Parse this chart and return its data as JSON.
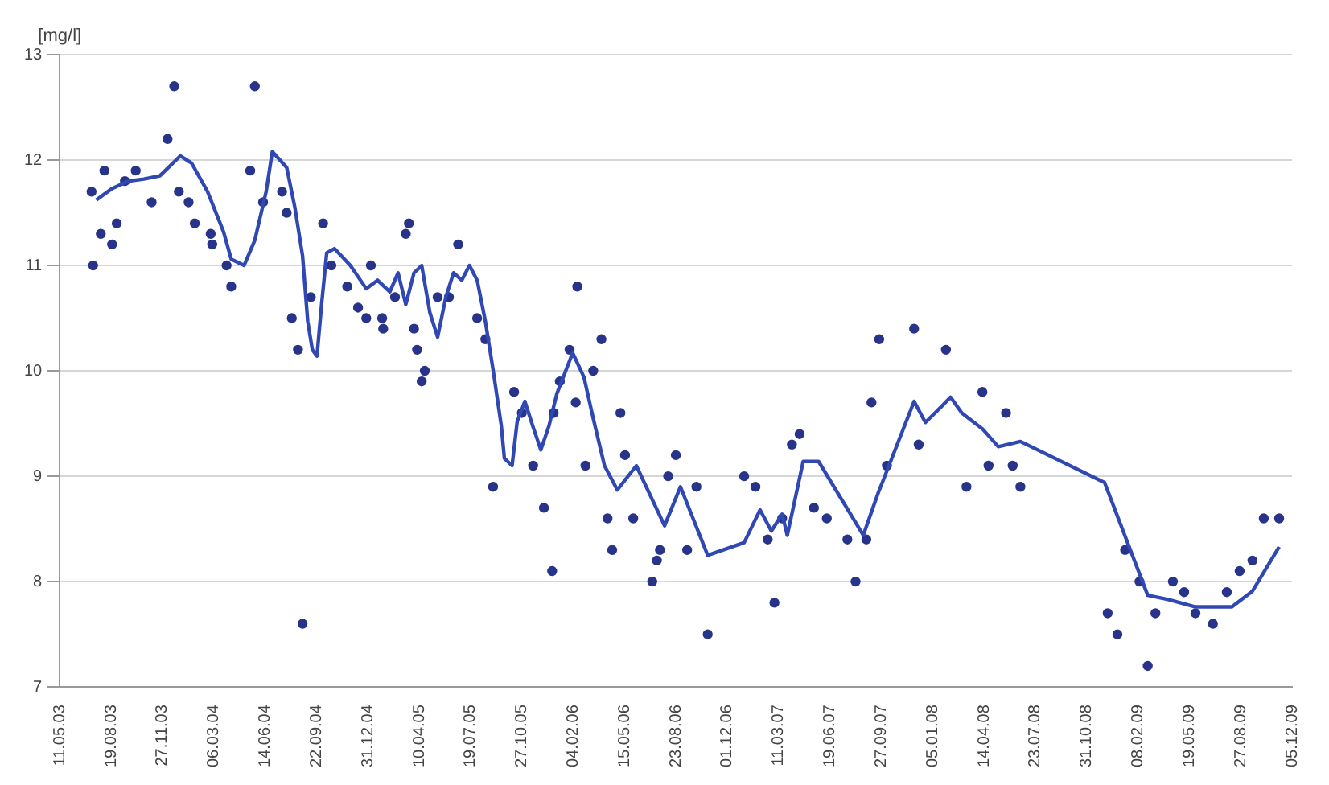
{
  "chart_data": {
    "type": "scatter",
    "ylabel": "[mg/l]",
    "ylim": [
      7,
      13
    ],
    "yticks": [
      7,
      8,
      9,
      10,
      11,
      12,
      13
    ],
    "grid": "y",
    "legend": false,
    "xlim": [
      "2003-05-11",
      "2009-12-05"
    ],
    "xticks": [
      {
        "value": "2003-05-11",
        "label": "11.05.03"
      },
      {
        "value": "2003-08-19",
        "label": "19.08.03"
      },
      {
        "value": "2003-11-27",
        "label": "27.11.03"
      },
      {
        "value": "2004-03-06",
        "label": "06.03.04"
      },
      {
        "value": "2004-06-14",
        "label": "14.06.04"
      },
      {
        "value": "2004-09-22",
        "label": "22.09.04"
      },
      {
        "value": "2004-12-31",
        "label": "31.12.04"
      },
      {
        "value": "2005-04-10",
        "label": "10.04.05"
      },
      {
        "value": "2005-07-19",
        "label": "19.07.05"
      },
      {
        "value": "2005-10-27",
        "label": "27.10.05"
      },
      {
        "value": "2006-02-04",
        "label": "04.02.06"
      },
      {
        "value": "2006-05-15",
        "label": "15.05.06"
      },
      {
        "value": "2006-08-23",
        "label": "23.08.06"
      },
      {
        "value": "2006-12-01",
        "label": "01.12.06"
      },
      {
        "value": "2007-03-11",
        "label": "11.03.07"
      },
      {
        "value": "2007-06-19",
        "label": "19.06.07"
      },
      {
        "value": "2007-09-27",
        "label": "27.09.07"
      },
      {
        "value": "2008-01-05",
        "label": "05.01.08"
      },
      {
        "value": "2008-04-14",
        "label": "14.04.08"
      },
      {
        "value": "2008-07-23",
        "label": "23.07.08"
      },
      {
        "value": "2008-10-31",
        "label": "31.10.08"
      },
      {
        "value": "2009-02-08",
        "label": "08.02.09"
      },
      {
        "value": "2009-05-19",
        "label": "19.05.09"
      },
      {
        "value": "2009-08-27",
        "label": "27.08.09"
      },
      {
        "value": "2009-12-05",
        "label": "05.12.09"
      }
    ],
    "series": [
      {
        "type": "scatter",
        "color": "#28338a",
        "marker": "circle",
        "x": [
          "2003-07-12",
          "2003-07-15",
          "2003-08-06",
          "2003-07-30",
          "2003-08-21",
          "2003-08-30",
          "2003-09-15",
          "2003-10-06",
          "2003-11-06",
          "2003-12-07",
          "2003-12-20",
          "2003-12-29",
          "2004-01-17",
          "2004-01-29",
          "2004-02-29",
          "2004-03-03",
          "2004-03-31",
          "2004-04-09",
          "2004-05-16",
          "2004-05-25",
          "2004-06-10",
          "2004-07-17",
          "2004-07-26",
          "2004-08-05",
          "2004-08-17",
          "2004-08-26",
          "2004-09-11",
          "2004-10-05",
          "2004-10-21",
          "2004-11-21",
          "2004-12-12",
          "2004-12-28",
          "2005-01-06",
          "2005-01-28",
          "2005-01-30",
          "2005-02-22",
          "2005-03-15",
          "2005-03-21",
          "2005-03-31",
          "2005-04-06",
          "2005-04-21",
          "2005-04-15",
          "2005-05-16",
          "2005-06-07",
          "2005-06-25",
          "2005-08-01",
          "2005-08-17",
          "2005-09-01",
          "2005-10-12",
          "2005-10-27",
          "2005-11-18",
          "2005-12-09",
          "2005-12-25",
          "2005-12-28",
          "2006-01-09",
          "2006-01-28",
          "2006-02-12",
          "2006-02-09",
          "2006-02-28",
          "2006-03-15",
          "2006-03-31",
          "2006-04-12",
          "2006-04-21",
          "2006-05-07",
          "2006-05-16",
          "2006-06-01",
          "2006-07-08",
          "2006-07-17",
          "2006-07-23",
          "2006-08-08",
          "2006-08-23",
          "2006-09-14",
          "2006-10-02",
          "2006-10-24",
          "2007-01-03",
          "2007-01-25",
          "2007-02-18",
          "2007-03-03",
          "2007-03-18",
          "2007-04-06",
          "2007-04-21",
          "2007-05-19",
          "2007-06-13",
          "2007-07-23",
          "2007-08-08",
          "2007-08-29",
          "2007-09-08",
          "2007-09-23",
          "2007-10-08",
          "2007-11-30",
          "2007-12-09",
          "2008-01-31",
          "2008-03-11",
          "2008-04-11",
          "2008-04-23",
          "2008-05-27",
          "2008-06-09",
          "2008-06-24",
          "2008-12-11",
          "2008-12-30",
          "2009-01-14",
          "2009-02-11",
          "2009-02-27",
          "2009-03-14",
          "2009-04-17",
          "2009-05-09",
          "2009-05-31",
          "2009-07-04",
          "2009-07-31",
          "2009-08-25",
          "2009-09-19",
          "2009-10-11",
          "2009-11-10"
        ],
        "values": [
          11.7,
          11.0,
          11.9,
          11.3,
          11.2,
          11.4,
          11.8,
          11.9,
          11.6,
          12.2,
          12.7,
          11.7,
          11.6,
          11.4,
          11.3,
          11.2,
          11.0,
          10.8,
          11.9,
          12.7,
          11.6,
          11.7,
          11.5,
          10.5,
          10.2,
          7.6,
          10.7,
          11.4,
          11.0,
          10.8,
          10.6,
          10.5,
          11.0,
          10.5,
          10.4,
          10.7,
          11.3,
          11.4,
          10.4,
          10.2,
          10.0,
          9.9,
          10.7,
          10.7,
          11.2,
          10.5,
          10.3,
          8.9,
          9.8,
          9.6,
          9.1,
          8.7,
          8.1,
          9.6,
          9.9,
          10.2,
          10.8,
          9.7,
          9.1,
          10.0,
          10.3,
          8.6,
          8.3,
          9.6,
          9.2,
          8.6,
          8.0,
          8.2,
          8.3,
          9.0,
          9.2,
          8.3,
          8.9,
          7.5,
          9.0,
          8.9,
          8.4,
          7.8,
          8.6,
          9.3,
          9.4,
          8.7,
          8.6,
          8.4,
          8.0,
          8.4,
          9.7,
          10.3,
          9.1,
          10.4,
          9.3,
          10.2,
          8.9,
          9.8,
          9.1,
          9.6,
          9.1,
          8.9,
          7.7,
          7.5,
          8.3,
          8.0,
          7.2,
          7.7,
          8.0,
          7.9,
          7.7,
          7.6,
          7.9,
          8.1,
          8.2,
          8.6,
          8.6
        ]
      },
      {
        "type": "line",
        "color": "#2f48b4",
        "marker": "none",
        "line_style": "solid",
        "x": [
          "2003-07-21",
          "2003-08-21",
          "2003-09-21",
          "2003-10-22",
          "2003-11-22",
          "2004-01-01",
          "2004-01-23",
          "2004-02-23",
          "2004-03-25",
          "2004-04-09",
          "2004-05-04",
          "2004-05-25",
          "2004-06-16",
          "2004-06-28",
          "2004-07-26",
          "2004-08-11",
          "2004-08-26",
          "2004-09-05",
          "2004-09-14",
          "2004-09-23",
          "2004-10-02",
          "2004-10-12",
          "2004-10-27",
          "2004-11-27",
          "2004-12-28",
          "2005-01-19",
          "2005-02-12",
          "2005-02-28",
          "2005-03-15",
          "2005-03-31",
          "2005-04-15",
          "2005-05-01",
          "2005-05-16",
          "2005-06-01",
          "2005-06-16",
          "2005-07-02",
          "2005-07-17",
          "2005-08-01",
          "2005-08-17",
          "2005-09-01",
          "2005-09-17",
          "2005-09-23",
          "2005-10-08",
          "2005-10-18",
          "2005-11-02",
          "2005-11-17",
          "2005-12-03",
          "2005-12-19",
          "2006-01-03",
          "2006-02-03",
          "2006-02-25",
          "2006-03-15",
          "2006-04-06",
          "2006-05-01",
          "2006-06-07",
          "2006-08-01",
          "2006-09-01",
          "2006-10-24",
          "2007-01-03",
          "2007-02-03",
          "2007-02-25",
          "2007-03-18",
          "2007-03-28",
          "2007-04-28",
          "2007-05-28",
          "2007-08-23",
          "2007-09-21",
          "2007-10-08",
          "2007-11-30",
          "2007-12-22",
          "2008-01-22",
          "2008-02-09",
          "2008-03-02",
          "2008-04-11",
          "2008-05-12",
          "2008-06-24",
          "2008-12-05",
          "2009-01-14",
          "2009-02-27",
          "2009-04-08",
          "2009-05-31",
          "2009-08-10",
          "2009-09-19",
          "2009-11-10"
        ],
        "values": [
          11.62,
          11.73,
          11.8,
          11.82,
          11.85,
          12.04,
          11.97,
          11.7,
          11.32,
          11.06,
          11.0,
          11.24,
          11.7,
          12.08,
          11.93,
          11.55,
          11.09,
          10.47,
          10.2,
          10.14,
          10.63,
          11.12,
          11.16,
          11.0,
          10.78,
          10.86,
          10.75,
          10.93,
          10.63,
          10.93,
          11.0,
          10.55,
          10.32,
          10.7,
          10.93,
          10.86,
          11.0,
          10.86,
          10.47,
          10.01,
          9.48,
          9.17,
          9.1,
          9.52,
          9.71,
          9.48,
          9.25,
          9.48,
          9.78,
          10.17,
          9.94,
          9.55,
          9.1,
          8.87,
          9.1,
          8.53,
          8.9,
          8.25,
          8.37,
          8.68,
          8.48,
          8.64,
          8.44,
          9.14,
          9.14,
          8.44,
          8.84,
          9.05,
          9.71,
          9.51,
          9.66,
          9.75,
          9.6,
          9.45,
          9.28,
          9.33,
          8.94,
          8.43,
          7.87,
          7.83,
          7.76,
          7.76,
          7.91,
          8.33
        ]
      }
    ]
  }
}
